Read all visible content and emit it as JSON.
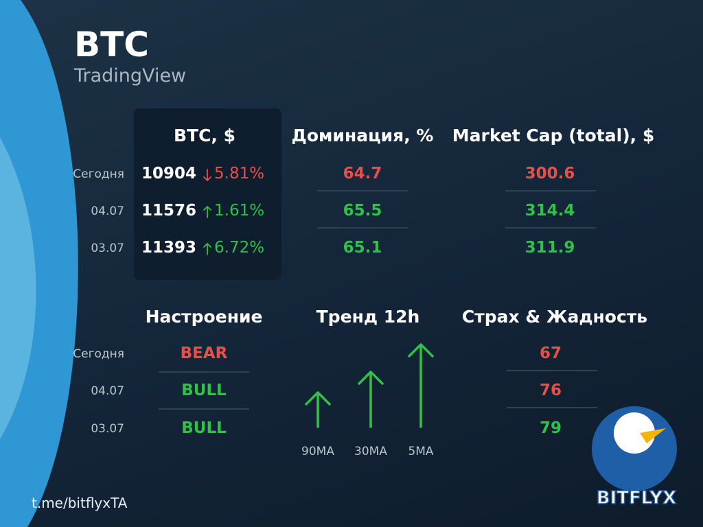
{
  "header": {
    "title": "BTC",
    "subtitle": "TradingView"
  },
  "btc_table": {
    "header": "BTC, $",
    "rows": [
      {
        "date": "Сегодня",
        "price": 10904,
        "change": "5.81%",
        "direction": "down"
      },
      {
        "date": "04.07",
        "price": 11576,
        "change": "1.61%",
        "direction": "up"
      },
      {
        "date": "03.07",
        "price": 11393,
        "change": "6.72%",
        "direction": "up"
      }
    ]
  },
  "dominance": {
    "header": "Доминация, %",
    "values": [
      64.7,
      65.5,
      65.1
    ],
    "directions": [
      "down",
      "up",
      "up"
    ]
  },
  "market_cap": {
    "header": "Market Cap (total), $",
    "values": [
      300.6,
      314.4,
      311.9
    ],
    "directions": [
      "down",
      "up",
      "up"
    ]
  },
  "sentiment": {
    "header": "Настроение",
    "rows": [
      {
        "date": "Сегодня",
        "value": "BEAR",
        "direction": "down"
      },
      {
        "date": "04.07",
        "value": "BULL",
        "direction": "up"
      },
      {
        "date": "03.07",
        "value": "BULL",
        "direction": "up"
      }
    ]
  },
  "trend": {
    "header": "Тренд 12h",
    "labels": [
      "90MA",
      "30MA",
      "5MA"
    ],
    "directions": [
      "up",
      "up",
      "up"
    ]
  },
  "fear_greed": {
    "header": "Страх & Жадность",
    "values": [
      67,
      76,
      79
    ],
    "directions": [
      "down",
      "down",
      "up"
    ]
  },
  "footer": {
    "link": "t.me/bitflyxTA",
    "logo": "BITFLYX"
  },
  "colors": {
    "up": "#2fc247",
    "down": "#e5504a"
  }
}
